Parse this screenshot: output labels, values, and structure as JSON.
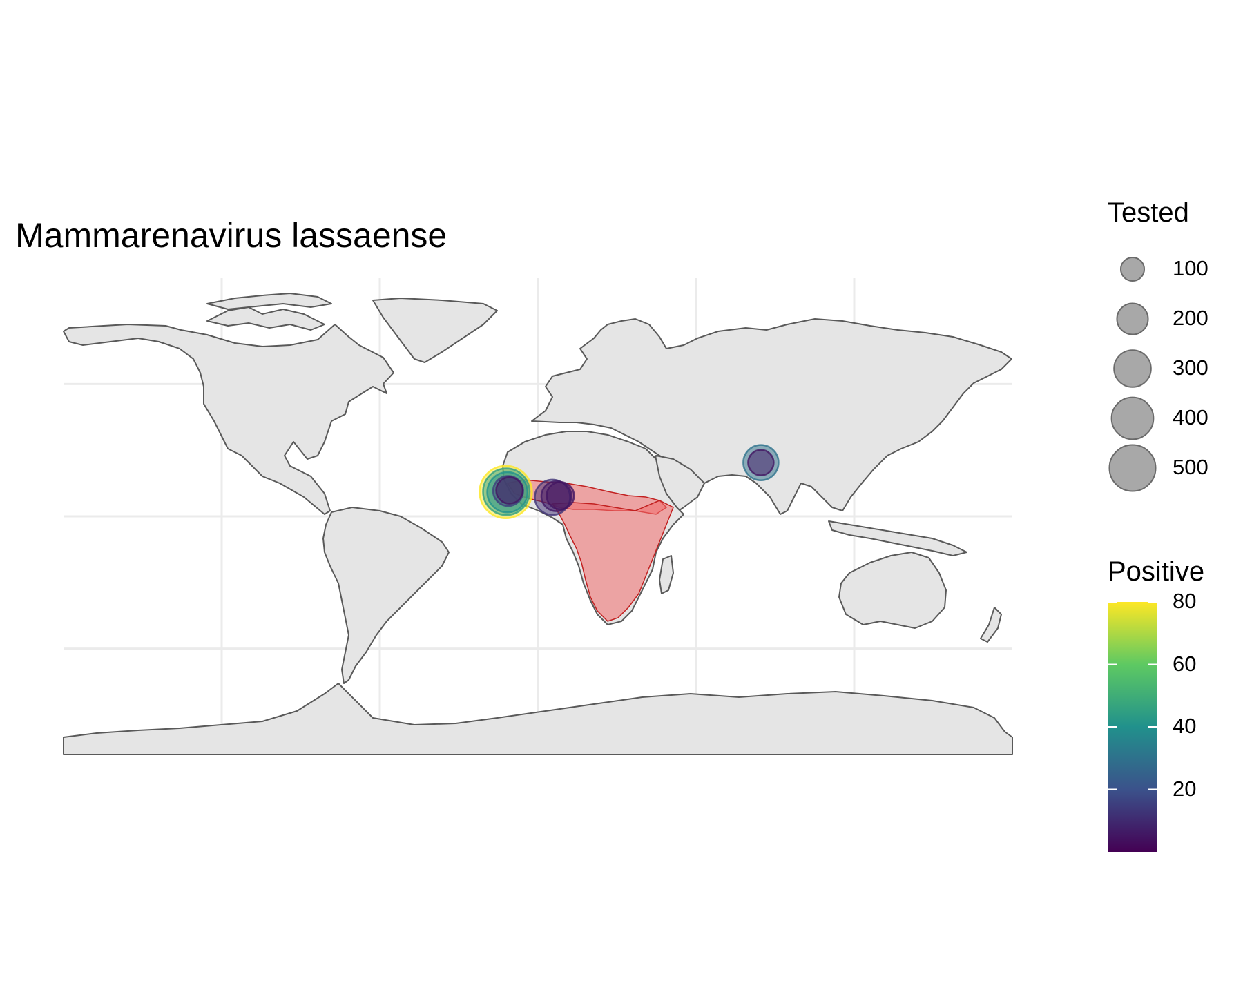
{
  "title": "Mammarenavirus lassaense",
  "legend_size": {
    "title": "Tested",
    "breaks": [
      "100",
      "200",
      "300",
      "400",
      "500"
    ],
    "values": [
      100,
      200,
      300,
      400,
      500
    ]
  },
  "legend_color": {
    "title": "Positive",
    "tick_labels": [
      "20",
      "40",
      "60",
      "80"
    ],
    "ticks": [
      20,
      40,
      60,
      80
    ],
    "range": [
      0,
      80
    ],
    "palette": [
      "#440154",
      "#3b528b",
      "#21918c",
      "#5ec962",
      "#fde725"
    ]
  },
  "colors": {
    "land_fill": "#e5e5e5",
    "land_border": "#595959",
    "range_fill": "#f26d6d",
    "range_outline": "#c22020",
    "grid": "#ebebeb",
    "legend_point": "#999999"
  },
  "chart_data": {
    "type": "map",
    "projection": "equirectangular",
    "title": "Mammarenavirus lassaense",
    "xlim": [
      -180,
      180
    ],
    "ylim": [
      -90,
      90
    ],
    "gridlines_lon": [
      -120,
      -60,
      0,
      60,
      120
    ],
    "gridlines_lat": [
      -50,
      0,
      50
    ],
    "highlighted_range": "sub-Saharan Africa (West, Central, East and Southern Africa)",
    "points": [
      {
        "lon": -12.2,
        "lat": 9.2,
        "tested": 550,
        "positive": 80
      },
      {
        "lon": -12.0,
        "lat": 9.3,
        "tested": 420,
        "positive": 45
      },
      {
        "lon": -11.6,
        "lat": 9.1,
        "tested": 300,
        "positive": 40
      },
      {
        "lon": -11.3,
        "lat": 9.6,
        "tested": 150,
        "positive": 15
      },
      {
        "lon": -10.8,
        "lat": 9.8,
        "tested": 110,
        "positive": 5
      },
      {
        "lon": 5.5,
        "lat": 7.2,
        "tested": 220,
        "positive": 12
      },
      {
        "lon": 7.0,
        "lat": 7.6,
        "tested": 150,
        "positive": 6
      },
      {
        "lon": 8.5,
        "lat": 7.8,
        "tested": 120,
        "positive": 5
      },
      {
        "lon": 84.6,
        "lat": 20.3,
        "tested": 220,
        "positive": 30
      },
      {
        "lon": 84.6,
        "lat": 20.3,
        "tested": 100,
        "positive": 5
      }
    ]
  }
}
